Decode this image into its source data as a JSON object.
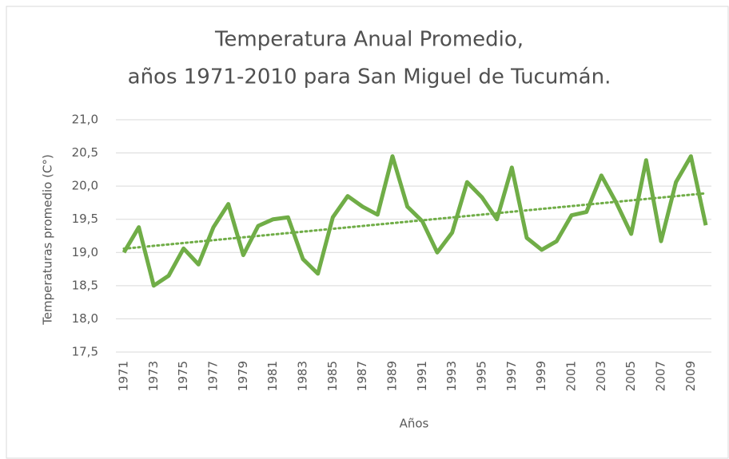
{
  "chart_data": {
    "type": "line",
    "title": [
      "Temperatura Anual Promedio,",
      "años 1971-2010 para San Miguel de Tucumán."
    ],
    "xlabel": "Años",
    "ylabel": "Temperaturas promedio (C°)",
    "x": [
      1971,
      1972,
      1973,
      1974,
      1975,
      1976,
      1977,
      1978,
      1979,
      1980,
      1981,
      1982,
      1983,
      1984,
      1985,
      1986,
      1987,
      1988,
      1989,
      1990,
      1991,
      1992,
      1993,
      1994,
      1995,
      1996,
      1997,
      1998,
      1999,
      2000,
      2001,
      2002,
      2003,
      2004,
      2005,
      2006,
      2007,
      2008,
      2009,
      2010
    ],
    "series": [
      {
        "color": "#70ad47",
        "values": [
          19.0,
          19.38,
          18.5,
          18.65,
          19.06,
          18.82,
          19.38,
          19.73,
          18.96,
          19.4,
          19.5,
          19.53,
          18.9,
          18.68,
          19.53,
          19.85,
          19.69,
          19.57,
          20.45,
          19.69,
          19.47,
          19.0,
          19.3,
          20.06,
          19.83,
          19.5,
          20.28,
          19.22,
          19.04,
          19.17,
          19.56,
          19.61,
          20.16,
          19.75,
          19.28,
          20.39,
          19.17,
          20.06,
          20.45,
          19.41
        ]
      }
    ],
    "trendline": {
      "type": "linear",
      "color": "#70ad47"
    },
    "xlim": [
      1971,
      2010
    ],
    "xticks": [
      1971,
      1973,
      1975,
      1977,
      1979,
      1981,
      1983,
      1985,
      1987,
      1989,
      1991,
      1993,
      1995,
      1997,
      1999,
      2001,
      2003,
      2005,
      2007,
      2009
    ],
    "ylim": [
      17.5,
      21.0
    ],
    "yticks": [
      {
        "value": 17.5,
        "label": "17,5"
      },
      {
        "value": 18.0,
        "label": "18,0"
      },
      {
        "value": 18.5,
        "label": "18,5"
      },
      {
        "value": 19.0,
        "label": "19,0"
      },
      {
        "value": 19.5,
        "label": "19,5"
      },
      {
        "value": 20.0,
        "label": "20,0"
      },
      {
        "value": 20.5,
        "label": "20,5"
      },
      {
        "value": 21.0,
        "label": "21,0"
      }
    ],
    "grid": true
  }
}
